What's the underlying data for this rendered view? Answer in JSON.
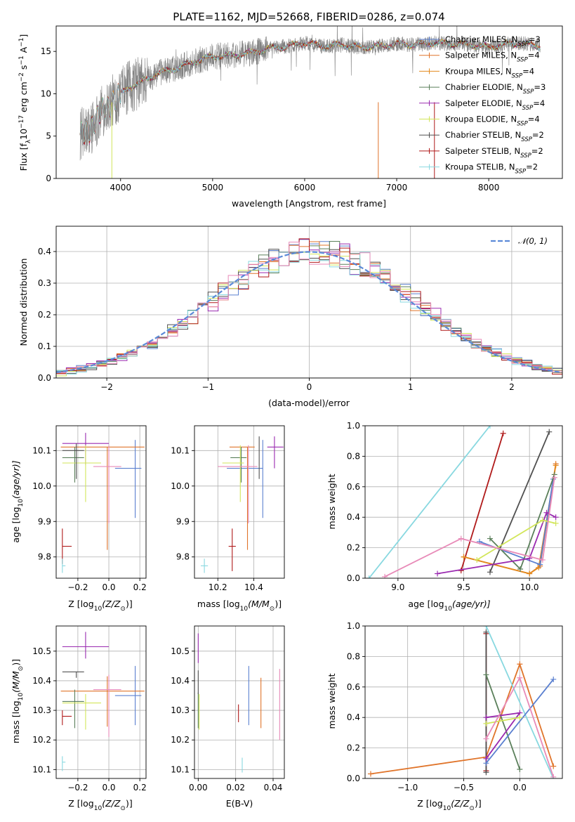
{
  "colors": {
    "miles_chabrier": "#5b80d0",
    "miles_salpeter": "#e0742a",
    "miles_kroupa": "#e38a1e",
    "elodie_chabrier": "#5a7f5a",
    "elodie_salpeter": "#9a2ab0",
    "elodie_kroupa": "#d2e65a",
    "stelib_chabrier": "#505050",
    "stelib_salpeter": "#b01a1a",
    "stelib_kroupa": "#88d8e0",
    "gauss": "#5b8ad8",
    "pink": "#e88ab8",
    "spectrum": "#808080"
  },
  "chart_data": [
    {
      "id": "spectrum",
      "type": "line",
      "title": "PLATE=1162, MJD=52668, FIBERID=0286, z=0.074",
      "xlabel": "wavelength [Angstrom, rest frame]",
      "ylabel": "Flux [f",
      "ylabel_sub": "λ",
      "ylabel_rest": "10",
      "ylabel_exp": "−17",
      "ylabel_unit": " erg cm",
      "ylabel_unit_exp": "−2",
      "ylabel_unit2": " s",
      "ylabel_unit2_exp": "−1",
      "ylabel_unit3": " A",
      "ylabel_unit3_exp": "−1",
      "ylabel_close": "]",
      "xlim": [
        3300,
        8800
      ],
      "ylim": [
        0,
        18
      ],
      "xticks": [
        4000,
        5000,
        6000,
        7000,
        8000
      ],
      "yticks": [
        0,
        5,
        10,
        15
      ],
      "continuum": {
        "x": [
          3560,
          3650,
          3800,
          3950,
          4100,
          4250,
          4400,
          4600,
          4800,
          5000,
          5200,
          5400,
          5600,
          5800,
          6000,
          6200,
          6400,
          6600,
          6800,
          7000,
          7200,
          7400,
          7600,
          7800,
          8000,
          8200,
          8400,
          8560
        ],
        "y": [
          5.2,
          5.5,
          8.0,
          9.5,
          10.8,
          11.5,
          12.4,
          13.0,
          13.8,
          14.4,
          14.5,
          14.8,
          15.3,
          15.6,
          16.0,
          15.6,
          15.8,
          15.5,
          15.6,
          15.9,
          15.8,
          16.0,
          15.9,
          15.8,
          15.5,
          15.9,
          15.9,
          15.6
        ]
      },
      "legend": [
        {
          "label": "Chabrier MILES, N",
          "sub": "SSP",
          "tail": "=3",
          "color": "#5b80d0"
        },
        {
          "label": "Salpeter MILES, N",
          "sub": "SSP",
          "tail": "=4",
          "color": "#e0742a"
        },
        {
          "label": "Kroupa MILES, N",
          "sub": "SSP",
          "tail": "=4",
          "color": "#e38a1e"
        },
        {
          "label": "Chabrier ELODIE, N",
          "sub": "SSP",
          "tail": "=3",
          "color": "#5a7f5a"
        },
        {
          "label": "Salpeter ELODIE, N",
          "sub": "SSP",
          "tail": "=4",
          "color": "#9a2ab0"
        },
        {
          "label": "Kroupa ELODIE, N",
          "sub": "SSP",
          "tail": "=4",
          "color": "#d2e65a"
        },
        {
          "label": "Chabrier STELIB, N",
          "sub": "SSP",
          "tail": "=2",
          "color": "#505050"
        },
        {
          "label": "Salpeter STELIB, N",
          "sub": "SSP",
          "tail": "=2",
          "color": "#b01a1a"
        },
        {
          "label": "Kroupa STELIB, N",
          "sub": "SSP",
          "tail": "=2",
          "color": "#88d8e0"
        }
      ]
    },
    {
      "id": "residuals",
      "type": "histogram",
      "xlabel": "(data-model)/error",
      "ylabel": "Normed distribution",
      "xlim": [
        -2.5,
        2.5
      ],
      "ylim": [
        0,
        0.48
      ],
      "xticks": [
        -2,
        -1,
        0,
        1,
        2
      ],
      "yticks": [
        0.0,
        0.1,
        0.2,
        0.3,
        0.4
      ],
      "bin_width": 0.1,
      "legend": [
        {
          "label": "𝒩(0, 1)",
          "color": "#5b8ad8"
        }
      ],
      "series_colors": [
        "#5b80d0",
        "#e0742a",
        "#5a7f5a",
        "#9a2ab0",
        "#d2e65a",
        "#505050",
        "#b01a1a",
        "#88d8e0",
        "#e88ab8"
      ]
    },
    {
      "id": "age_vs_Z",
      "type": "errorbar",
      "xlabel": "Z [log",
      "xlabel_sub": "10",
      "xlabel_rest": "(Z/Z",
      "xlabel_sub2": "⊙",
      "xlabel_close": ")]",
      "ylabel": "age  [log",
      "ylabel_sub": "10",
      "ylabel_rest": "(age/yr)]",
      "xlim": [
        -0.34,
        0.24
      ],
      "ylim": [
        9.74,
        10.17
      ],
      "xticks": [
        -0.2,
        0.0,
        0.2
      ],
      "yticks": [
        9.8,
        9.9,
        10.0,
        10.1
      ],
      "points": [
        {
          "x": 0.17,
          "y": 10.05,
          "xerr": [
            0.13,
            0.04
          ],
          "yerr": [
            0.14,
            0.08
          ],
          "color": "#5b80d0"
        },
        {
          "x": -0.01,
          "y": 10.11,
          "xerr": [
            0.3,
            0.24
          ],
          "yerr": [
            0.29,
            0.0
          ],
          "color": "#e0742a"
        },
        {
          "x": -0.22,
          "y": 10.08,
          "xerr": [
            0.08,
            0.06
          ],
          "yerr": [
            0.07,
            0.03
          ],
          "color": "#5a7f5a"
        },
        {
          "x": -0.15,
          "y": 10.12,
          "xerr": [
            0.15,
            0.15
          ],
          "yerr": [
            0.06,
            0.03
          ],
          "color": "#9a2ab0"
        },
        {
          "x": -0.15,
          "y": 10.065,
          "xerr": [
            0.15,
            0.1
          ],
          "yerr": [
            0.11,
            0.05
          ],
          "color": "#d2e65a"
        },
        {
          "x": -0.21,
          "y": 10.1,
          "xerr": [
            0.09,
            0.05
          ],
          "yerr": [
            0.08,
            0.02
          ],
          "color": "#505050"
        },
        {
          "x": -0.3,
          "y": 9.83,
          "xerr": [
            0.0,
            0.06
          ],
          "yerr": [
            0.05,
            0.05
          ],
          "color": "#b01a1a"
        },
        {
          "x": -0.3,
          "y": 9.775,
          "xerr": [
            0.0,
            0.02
          ],
          "yerr": [
            0.02,
            0.02
          ],
          "color": "#88d8e0"
        },
        {
          "x": 0.0,
          "y": 10.055,
          "xerr": [
            0.1,
            0.08
          ],
          "yerr": [
            0.16,
            0.06
          ],
          "color": "#e88ab8"
        }
      ]
    },
    {
      "id": "age_vs_mass",
      "type": "errorbar",
      "xlabel": "mass [log",
      "xlabel_sub": "10",
      "xlabel_rest": "(M/M",
      "xlabel_sub2": "⊙",
      "xlabel_close": ")]",
      "xlim": [
        10.07,
        10.57
      ],
      "ylim": [
        9.74,
        10.17
      ],
      "xticks": [
        10.2,
        10.4
      ],
      "yticks": [
        9.8,
        9.9,
        10.0,
        10.1
      ],
      "points": [
        {
          "x": 10.45,
          "y": 10.05,
          "xerr": [
            0.2,
            0.0
          ],
          "yerr": [
            0.14,
            0.08
          ],
          "color": "#5b80d0"
        },
        {
          "x": 10.365,
          "y": 10.11,
          "xerr": [
            0.1,
            0.04
          ],
          "yerr": [
            0.29,
            0.0
          ],
          "color": "#e0742a"
        },
        {
          "x": 10.33,
          "y": 10.08,
          "xerr": [
            0.06,
            0.03
          ],
          "yerr": [
            0.07,
            0.03
          ],
          "color": "#5a7f5a"
        },
        {
          "x": 10.515,
          "y": 10.11,
          "xerr": [
            0.04,
            0.05
          ],
          "yerr": [
            0.06,
            0.03
          ],
          "color": "#9a2ab0"
        },
        {
          "x": 10.325,
          "y": 10.065,
          "xerr": [
            0.1,
            0.02
          ],
          "yerr": [
            0.11,
            0.05
          ],
          "color": "#d2e65a"
        },
        {
          "x": 10.43,
          "y": 10.1,
          "xerr": [
            0.0,
            0.0
          ],
          "yerr": [
            0.08,
            0.04
          ],
          "color": "#505050"
        },
        {
          "x": 10.28,
          "y": 9.83,
          "xerr": [
            0.02,
            0.02
          ],
          "yerr": [
            0.07,
            0.05
          ],
          "color": "#b01a1a"
        },
        {
          "x": 10.125,
          "y": 9.775,
          "xerr": [
            0.02,
            0.02
          ],
          "yerr": [
            0.02,
            0.02
          ],
          "color": "#88d8e0"
        },
        {
          "x": 10.37,
          "y": 10.055,
          "xerr": [
            0.17,
            0.05
          ],
          "yerr": [
            0.16,
            0.06
          ],
          "color": "#e88ab8"
        }
      ]
    },
    {
      "id": "weight_vs_age",
      "type": "line",
      "xlabel": "age  [log",
      "xlabel_sub": "10",
      "xlabel_rest": "(age/yr)]",
      "ylabel": "mass weight",
      "xlim": [
        8.75,
        10.25
      ],
      "ylim": [
        0,
        1
      ],
      "xticks": [
        9.0,
        9.5,
        10.0
      ],
      "yticks": [
        0.0,
        0.2,
        0.4,
        0.6,
        0.8,
        1.0
      ],
      "series": [
        {
          "color": "#88d8e0",
          "x": [
            8.78,
            9.7
          ],
          "y": [
            0.0,
            1.0
          ]
        },
        {
          "color": "#b01a1a",
          "x": [
            9.48,
            9.8
          ],
          "y": [
            0.05,
            0.95
          ]
        },
        {
          "color": "#505050",
          "x": [
            9.7,
            10.15
          ],
          "y": [
            0.04,
            0.96
          ]
        },
        {
          "color": "#e0742a",
          "x": [
            9.5,
            10.0,
            10.08,
            10.2
          ],
          "y": [
            0.14,
            0.03,
            0.08,
            0.75
          ]
        },
        {
          "color": "#e38a1e",
          "x": [
            9.5,
            10.0,
            10.07,
            10.2
          ],
          "y": [
            0.14,
            0.03,
            0.07,
            0.74
          ]
        },
        {
          "color": "#5b80d0",
          "x": [
            9.62,
            10.08,
            10.18
          ],
          "y": [
            0.24,
            0.09,
            0.65
          ]
        },
        {
          "color": "#5a7f5a",
          "x": [
            9.7,
            9.93,
            10.19
          ],
          "y": [
            0.26,
            0.06,
            0.68
          ]
        },
        {
          "color": "#9a2ab0",
          "x": [
            9.3,
            10.0,
            10.13,
            10.2
          ],
          "y": [
            0.03,
            0.13,
            0.43,
            0.4
          ]
        },
        {
          "color": "#d2e65a",
          "x": [
            9.6,
            10.1,
            10.2
          ],
          "y": [
            0.12,
            0.38,
            0.36
          ]
        },
        {
          "color": "#e88ab8",
          "x": [
            8.9,
            9.48,
            10.1,
            10.19
          ],
          "y": [
            0.01,
            0.26,
            0.12,
            0.66
          ]
        }
      ]
    },
    {
      "id": "mass_vs_Z",
      "type": "errorbar",
      "xlabel": "Z [log",
      "xlabel_sub": "10",
      "xlabel_rest": "(Z/Z",
      "xlabel_sub2": "⊙",
      "xlabel_close": ")]",
      "ylabel": "mass [log",
      "ylabel_sub": "10",
      "ylabel_rest": "(M/M",
      "ylabel_sub2": "⊙",
      "ylabel_close": ")]",
      "xlim": [
        -0.34,
        0.24
      ],
      "ylim": [
        10.07,
        10.585
      ],
      "xticks": [
        -0.2,
        0.0,
        0.2
      ],
      "yticks": [
        10.1,
        10.2,
        10.3,
        10.4,
        10.5
      ],
      "points": [
        {
          "x": 0.17,
          "y": 10.35,
          "xerr": [
            0.13,
            0.04
          ],
          "yerr": [
            0.1,
            0.1
          ],
          "color": "#5b80d0"
        },
        {
          "x": -0.01,
          "y": 10.365,
          "xerr": [
            0.3,
            0.24
          ],
          "yerr": [
            0.12,
            0.05
          ],
          "color": "#e0742a"
        },
        {
          "x": -0.22,
          "y": 10.33,
          "xerr": [
            0.08,
            0.06
          ],
          "yerr": [
            0.09,
            0.04
          ],
          "color": "#5a7f5a"
        },
        {
          "x": -0.15,
          "y": 10.515,
          "xerr": [
            0.15,
            0.15
          ],
          "yerr": [
            0.04,
            0.05
          ],
          "color": "#9a2ab0"
        },
        {
          "x": -0.15,
          "y": 10.325,
          "xerr": [
            0.15,
            0.1
          ],
          "yerr": [
            0.09,
            0.03
          ],
          "color": "#d2e65a"
        },
        {
          "x": -0.21,
          "y": 10.43,
          "xerr": [
            0.09,
            0.05
          ],
          "yerr": [
            0.02,
            0.0
          ],
          "color": "#505050"
        },
        {
          "x": -0.3,
          "y": 10.28,
          "xerr": [
            0.0,
            0.06
          ],
          "yerr": [
            0.03,
            0.02
          ],
          "color": "#b01a1a"
        },
        {
          "x": -0.3,
          "y": 10.125,
          "xerr": [
            0.0,
            0.02
          ],
          "yerr": [
            0.03,
            0.02
          ],
          "color": "#88d8e0"
        },
        {
          "x": 0.0,
          "y": 10.37,
          "xerr": [
            0.1,
            0.08
          ],
          "yerr": [
            0.16,
            0.05
          ],
          "color": "#e88ab8"
        }
      ]
    },
    {
      "id": "mass_vs_ebv",
      "type": "errorbar",
      "xlabel": "E(B-V)",
      "xlim": [
        -0.002,
        0.046
      ],
      "ylim": [
        10.07,
        10.585
      ],
      "xticks": [
        0.0,
        0.02,
        0.04
      ],
      "yticks": [
        10.1,
        10.2,
        10.3,
        10.4,
        10.5
      ],
      "points": [
        {
          "x": 0.027,
          "y": 10.35,
          "xerr": [
            0,
            0
          ],
          "yerr": [
            0.1,
            0.1
          ],
          "color": "#5b80d0"
        },
        {
          "x": 0.0335,
          "y": 10.3,
          "xerr": [
            0,
            0
          ],
          "yerr": [
            0.06,
            0.11
          ],
          "color": "#e0742a"
        },
        {
          "x": 0.0,
          "y": 10.3,
          "xerr": [
            0,
            0
          ],
          "yerr": [
            0.06,
            0.06
          ],
          "color": "#5a7f5a"
        },
        {
          "x": 0.0,
          "y": 10.51,
          "xerr": [
            0,
            0
          ],
          "yerr": [
            0.05,
            0.05
          ],
          "color": "#9a2ab0"
        },
        {
          "x": 0.0005,
          "y": 10.295,
          "xerr": [
            0,
            0
          ],
          "yerr": [
            0.06,
            0.06
          ],
          "color": "#d2e65a"
        },
        {
          "x": 0.0,
          "y": 10.395,
          "xerr": [
            0,
            0
          ],
          "yerr": [
            0.04,
            0.04
          ],
          "color": "#505050"
        },
        {
          "x": 0.0215,
          "y": 10.29,
          "xerr": [
            0,
            0
          ],
          "yerr": [
            0.03,
            0.03
          ],
          "color": "#b01a1a"
        },
        {
          "x": 0.0235,
          "y": 10.115,
          "xerr": [
            0,
            0
          ],
          "yerr": [
            0.025,
            0.025
          ],
          "color": "#88d8e0"
        },
        {
          "x": 0.0435,
          "y": 10.32,
          "xerr": [
            0,
            0
          ],
          "yerr": [
            0.12,
            0.12
          ],
          "color": "#e88ab8"
        }
      ]
    },
    {
      "id": "weight_vs_Z",
      "type": "line",
      "xlabel": "Z [log",
      "xlabel_sub": "10",
      "xlabel_rest": "(Z/Z",
      "xlabel_sub2": "⊙",
      "xlabel_close": ")]",
      "ylabel": "mass weight",
      "xlim": [
        -1.38,
        0.38
      ],
      "ylim": [
        0,
        1
      ],
      "xticks": [
        -1.0,
        -0.5,
        0.0
      ],
      "yticks": [
        0.0,
        0.2,
        0.4,
        0.6,
        0.8,
        1.0
      ],
      "series": [
        {
          "color": "#e0742a",
          "x": [
            -1.33,
            -0.3,
            0.0,
            0.3
          ],
          "y": [
            0.03,
            0.14,
            0.75,
            0.08
          ]
        },
        {
          "color": "#b01a1a",
          "x": [
            -0.3,
            -0.3
          ],
          "y": [
            0.05,
            0.95
          ]
        },
        {
          "color": "#505050",
          "x": [
            -0.3,
            -0.3
          ],
          "y": [
            0.04,
            0.96
          ]
        },
        {
          "color": "#88d8e0",
          "x": [
            -0.3,
            0.3
          ],
          "y": [
            1.0,
            0.0
          ]
        },
        {
          "color": "#5a7f5a",
          "x": [
            -0.3,
            0.0
          ],
          "y": [
            0.68,
            0.06
          ]
        },
        {
          "color": "#5b80d0",
          "x": [
            -0.3,
            0.3
          ],
          "y": [
            0.1,
            0.65
          ]
        },
        {
          "color": "#9a2ab0",
          "x": [
            -0.3,
            0.0,
            -0.3
          ],
          "y": [
            0.13,
            0.43,
            0.4
          ]
        },
        {
          "color": "#d2e65a",
          "x": [
            -0.3,
            0.0
          ],
          "y": [
            0.36,
            0.4
          ]
        },
        {
          "color": "#e88ab8",
          "x": [
            -0.3,
            0.0,
            0.3
          ],
          "y": [
            0.26,
            0.66,
            0.01
          ]
        }
      ]
    }
  ]
}
